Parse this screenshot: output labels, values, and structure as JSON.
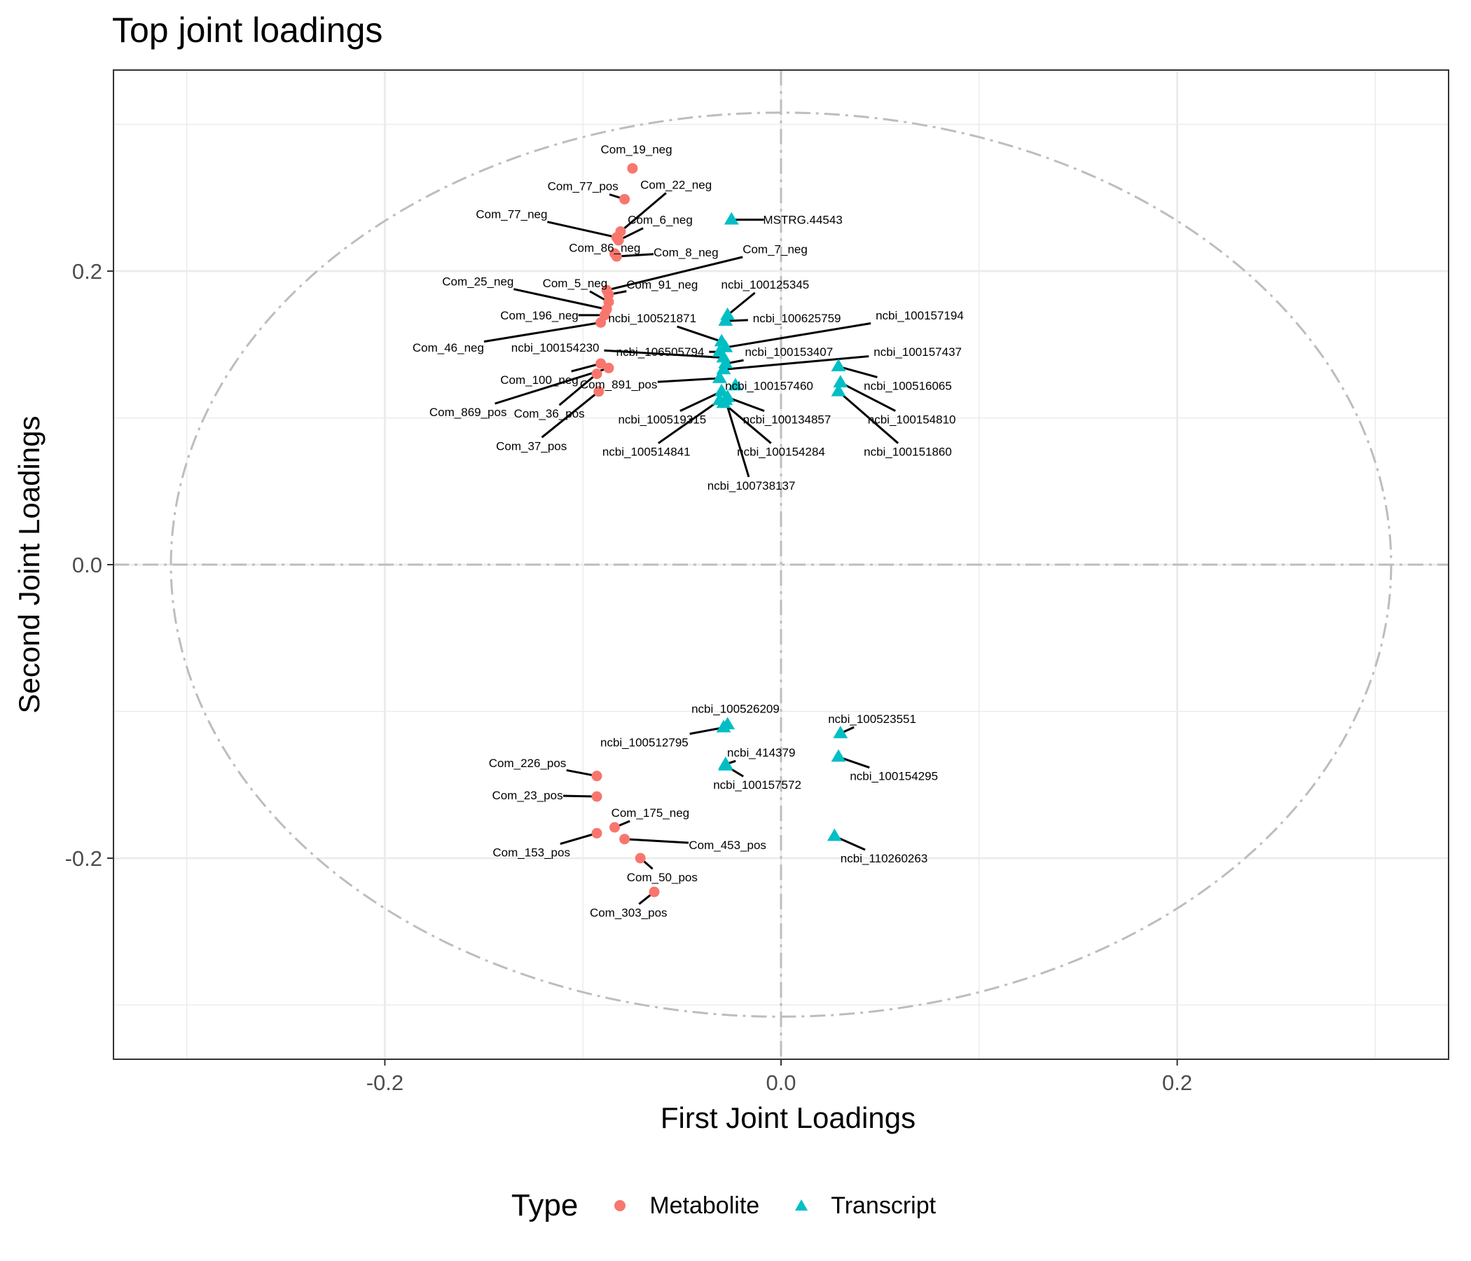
{
  "chart_data": {
    "type": "scatter",
    "title": "Top joint loadings",
    "xlabel": "First Joint Loadings",
    "ylabel": "Second Joint Loadings",
    "xlim": [
      -0.337,
      0.337
    ],
    "ylim": [
      -0.337,
      0.337
    ],
    "x_ticks": [
      -0.2,
      0.0,
      0.2
    ],
    "y_ticks": [
      -0.2,
      0.0,
      0.2
    ],
    "x_tick_labels": [
      "-0.2",
      "0.0",
      "0.2"
    ],
    "y_tick_labels": [
      "-0.2",
      "0.0",
      "0.2"
    ],
    "grid": true,
    "reference_lines": {
      "x": 0,
      "y": 0,
      "style": "dash-dot"
    },
    "ellipse": {
      "rx": 0.308,
      "ry": 0.308,
      "style": "dash-dot"
    },
    "legend": {
      "title": "Type",
      "position": "bottom"
    },
    "series": [
      {
        "name": "Metabolite",
        "color": "#F8766D",
        "marker": "circle",
        "points": [
          {
            "label": "Com_19_neg",
            "x": -0.075,
            "y": 0.27,
            "lx": -0.073,
            "ly": 0.283
          },
          {
            "label": "Com_77_pos",
            "x": -0.079,
            "y": 0.249,
            "lx": -0.1,
            "ly": 0.258
          },
          {
            "label": "Com_22_neg",
            "x": -0.081,
            "y": 0.227,
            "lx": -0.053,
            "ly": 0.259
          },
          {
            "label": "Com_77_neg",
            "x": -0.083,
            "y": 0.223,
            "lx": -0.136,
            "ly": 0.239
          },
          {
            "label": "Com_6_neg",
            "x": -0.082,
            "y": 0.221,
            "lx": -0.061,
            "ly": 0.235
          },
          {
            "label": "Com_86_neg",
            "x": -0.084,
            "y": 0.212,
            "lx": -0.089,
            "ly": 0.216
          },
          {
            "label": "Com_8_neg",
            "x": -0.083,
            "y": 0.21,
            "lx": -0.048,
            "ly": 0.213
          },
          {
            "label": "Com_7_neg",
            "x": -0.088,
            "y": 0.187,
            "lx": -0.003,
            "ly": 0.215
          },
          {
            "label": "Com_91_neg",
            "x": -0.087,
            "y": 0.184,
            "lx": -0.06,
            "ly": 0.191
          },
          {
            "label": "Com_5_neg",
            "x": -0.087,
            "y": 0.179,
            "lx": -0.104,
            "ly": 0.192
          },
          {
            "label": "Com_25_neg",
            "x": -0.088,
            "y": 0.174,
            "lx": -0.153,
            "ly": 0.193
          },
          {
            "label": "Com_196_neg",
            "x": -0.089,
            "y": 0.17,
            "lx": -0.122,
            "ly": 0.17
          },
          {
            "label": "Com_46_neg",
            "x": -0.091,
            "y": 0.165,
            "lx": -0.168,
            "ly": 0.148
          },
          {
            "label": "Com_100_neg",
            "x": -0.091,
            "y": 0.137,
            "lx": -0.122,
            "ly": 0.126
          },
          {
            "label": "Com_869_pos",
            "x": -0.087,
            "y": 0.134,
            "lx": -0.158,
            "ly": 0.104
          },
          {
            "label": "Com_36_pos",
            "x": -0.093,
            "y": 0.13,
            "lx": -0.117,
            "ly": 0.103
          },
          {
            "label": "Com_37_pos",
            "x": -0.092,
            "y": 0.118,
            "lx": -0.126,
            "ly": 0.081
          },
          {
            "label": "Com_226_pos",
            "x": -0.093,
            "y": -0.144,
            "lx": -0.128,
            "ly": -0.135
          },
          {
            "label": "Com_23_pos",
            "x": -0.093,
            "y": -0.158,
            "lx": -0.128,
            "ly": -0.157
          },
          {
            "label": "Com_175_neg",
            "x": -0.084,
            "y": -0.179,
            "lx": -0.066,
            "ly": -0.169
          },
          {
            "label": "Com_153_pos",
            "x": -0.093,
            "y": -0.183,
            "lx": -0.126,
            "ly": -0.196
          },
          {
            "label": "Com_453_pos",
            "x": -0.079,
            "y": -0.187,
            "lx": -0.027,
            "ly": -0.191
          },
          {
            "label": "Com_50_pos",
            "x": -0.071,
            "y": -0.2,
            "lx": -0.06,
            "ly": -0.213
          },
          {
            "label": "Com_303_pos",
            "x": -0.064,
            "y": -0.223,
            "lx": -0.077,
            "ly": -0.237
          }
        ]
      },
      {
        "name": "Transcript",
        "color": "#00BFC4",
        "marker": "triangle",
        "points": [
          {
            "label": "MSTRG.44543",
            "x": -0.025,
            "y": 0.235,
            "lx": 0.011,
            "ly": 0.235
          },
          {
            "label": "ncbi_100125345",
            "x": -0.027,
            "y": 0.17,
            "lx": -0.008,
            "ly": 0.191
          },
          {
            "label": "ncbi_100625759",
            "x": -0.028,
            "y": 0.166,
            "lx": 0.008,
            "ly": 0.168
          },
          {
            "label": "ncbi_100521871",
            "x": -0.03,
            "y": 0.152,
            "lx": -0.065,
            "ly": 0.168
          },
          {
            "label": "ncbi_100157194",
            "x": -0.028,
            "y": 0.148,
            "lx": 0.07,
            "ly": 0.17
          },
          {
            "label": "ncbi_106505794",
            "x": -0.031,
            "y": 0.145,
            "lx": -0.061,
            "ly": 0.145
          },
          {
            "label": "ncbi_100154230",
            "x": -0.029,
            "y": 0.141,
            "lx": -0.114,
            "ly": 0.148
          },
          {
            "label": "ncbi_100153407",
            "x": -0.028,
            "y": 0.137,
            "lx": 0.004,
            "ly": 0.145
          },
          {
            "label": "ncbi_100157437",
            "x": -0.029,
            "y": 0.133,
            "lx": 0.069,
            "ly": 0.145
          },
          {
            "label": "ncbi_100157460",
            "x": -0.023,
            "y": 0.122,
            "lx": -0.006,
            "ly": 0.122
          },
          {
            "label": "Com_891_pos",
            "x": -0.031,
            "y": 0.127,
            "lx": -0.082,
            "ly": 0.123
          },
          {
            "label": "ncbi_100519315",
            "x": -0.03,
            "y": 0.118,
            "lx": -0.06,
            "ly": 0.099
          },
          {
            "label": "ncbi_100134857",
            "x": -0.027,
            "y": 0.114,
            "lx": 0.003,
            "ly": 0.099
          },
          {
            "label": "ncbi_100514841",
            "x": -0.031,
            "y": 0.112,
            "lx": -0.068,
            "ly": 0.077
          },
          {
            "label": "ncbi_100154284",
            "x": -0.029,
            "y": 0.11,
            "lx": 0.0,
            "ly": 0.077
          },
          {
            "label": "ncbi_100738137",
            "x": -0.028,
            "y": 0.112,
            "lx": -0.015,
            "ly": 0.054
          },
          {
            "label": "ncbi_100516065",
            "x": 0.029,
            "y": 0.135,
            "lx": 0.064,
            "ly": 0.122
          },
          {
            "label": "ncbi_100154810",
            "x": 0.03,
            "y": 0.124,
            "lx": 0.066,
            "ly": 0.099
          },
          {
            "label": "ncbi_100151860",
            "x": 0.029,
            "y": 0.118,
            "lx": 0.064,
            "ly": 0.077
          },
          {
            "label": "ncbi_100526209",
            "x": -0.027,
            "y": -0.109,
            "lx": -0.023,
            "ly": -0.098
          },
          {
            "label": "ncbi_100512795",
            "x": -0.029,
            "y": -0.111,
            "lx": -0.069,
            "ly": -0.121
          },
          {
            "label": "ncbi_100523551",
            "x": 0.03,
            "y": -0.115,
            "lx": 0.046,
            "ly": -0.105
          },
          {
            "label": "ncbi_414379",
            "x": -0.028,
            "y": -0.136,
            "lx": -0.01,
            "ly": -0.128
          },
          {
            "label": "ncbi_100154295",
            "x": 0.029,
            "y": -0.131,
            "lx": 0.057,
            "ly": -0.144
          },
          {
            "label": "ncbi_100157572",
            "x": -0.028,
            "y": -0.137,
            "lx": -0.012,
            "ly": -0.15
          },
          {
            "label": "ncbi_110260263",
            "x": 0.027,
            "y": -0.185,
            "lx": 0.052,
            "ly": -0.2
          }
        ]
      }
    ]
  }
}
